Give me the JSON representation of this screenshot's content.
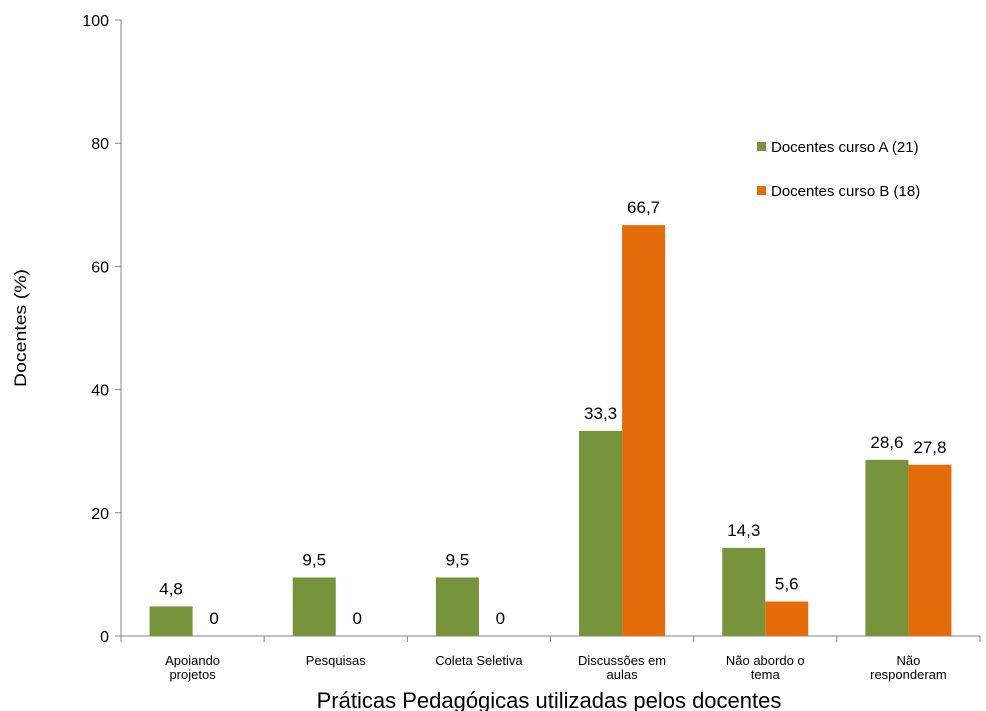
{
  "chart_data": {
    "type": "bar",
    "title": "",
    "xlabel": "Práticas Pedagógicas utilizadas pelos docentes",
    "ylabel": "Docentes (%)",
    "ylim": [
      0,
      100
    ],
    "yticks": [
      0,
      20,
      40,
      60,
      80,
      100
    ],
    "grid": false,
    "legend_position": "right",
    "categories": [
      [
        "Apoiando",
        "projetos"
      ],
      [
        "Pesquisas"
      ],
      [
        "Coleta Seletiva"
      ],
      [
        "Discussões em",
        "aulas"
      ],
      [
        "Não abordo o",
        "tema"
      ],
      [
        "Não",
        "responderam"
      ]
    ],
    "series": [
      {
        "name": "Docentes curso A (21)",
        "color": "#77933c",
        "values": [
          4.8,
          9.5,
          9.5,
          33.3,
          14.3,
          28.6
        ],
        "labels": [
          "4,8",
          "9,5",
          "9,5",
          "33,3",
          "14,3",
          "28,6"
        ]
      },
      {
        "name": "Docentes curso B (18)",
        "color": "#e46c0a",
        "values": [
          0,
          0,
          0,
          66.7,
          5.6,
          27.8
        ],
        "labels": [
          "0",
          "0",
          "0",
          "66,7",
          "5,6",
          "27,8"
        ]
      }
    ]
  }
}
